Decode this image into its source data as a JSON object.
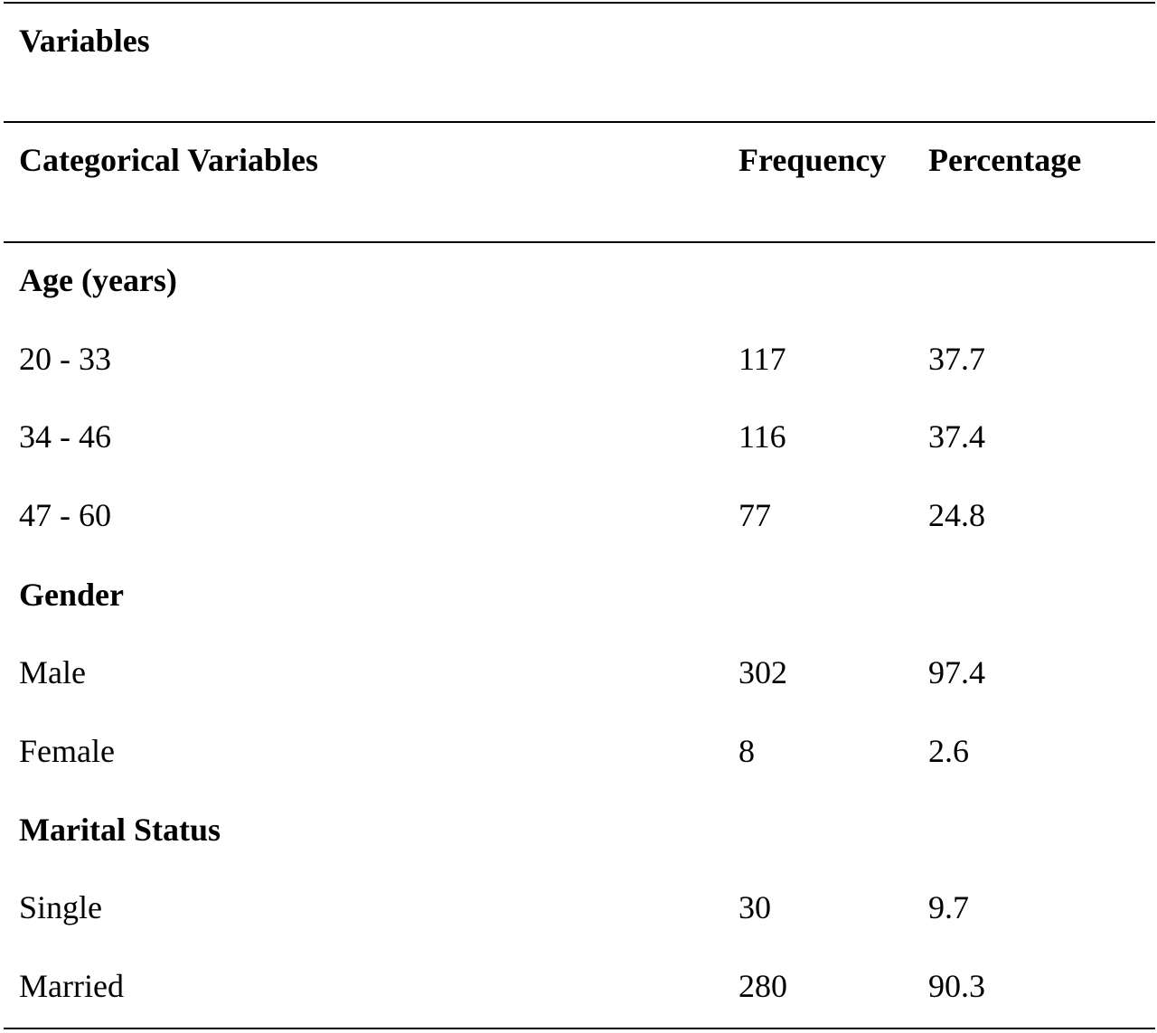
{
  "table": {
    "top_header": "Variables",
    "columns": {
      "variable": "Categorical Variables",
      "frequency": "Frequency",
      "percentage": "Percentage"
    },
    "sections": [
      {
        "heading": "Age (years)",
        "rows": [
          {
            "label": "20 - 33",
            "frequency": "117",
            "percentage": "37.7"
          },
          {
            "label": "34 - 46",
            "frequency": "116",
            "percentage": "37.4"
          },
          {
            "label": "47 - 60",
            "frequency": "77",
            "percentage": "24.8"
          }
        ]
      },
      {
        "heading": "Gender",
        "rows": [
          {
            "label": "Male",
            "frequency": "302",
            "percentage": "97.4"
          },
          {
            "label": "Female",
            "frequency": "8",
            "percentage": "2.6"
          }
        ]
      },
      {
        "heading": "Marital Status",
        "rows": [
          {
            "label": "Single",
            "frequency": "30",
            "percentage": "9.7"
          },
          {
            "label": "Married",
            "frequency": "280",
            "percentage": "90.3"
          }
        ]
      }
    ]
  }
}
